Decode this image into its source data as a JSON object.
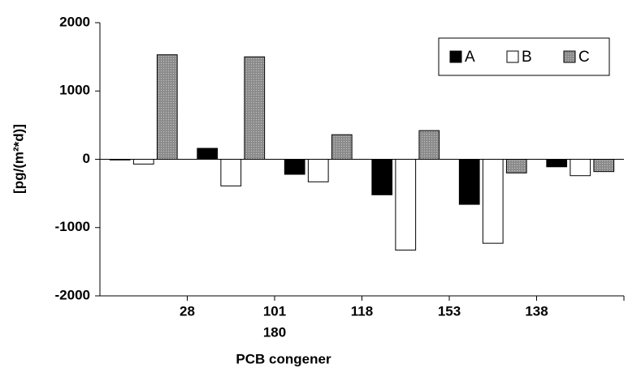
{
  "chart_data": {
    "type": "bar",
    "y_label": "[pg/(m²*d)]",
    "x_label": "PCB congener",
    "categories": [
      "28",
      "101",
      "118",
      "153",
      "138",
      "180"
    ],
    "series": [
      {
        "name": "A",
        "color": "#000000",
        "values": [
          -10,
          160,
          -220,
          -520,
          -660,
          -110
        ]
      },
      {
        "name": "B",
        "color": "#ffffff",
        "values": [
          -70,
          -390,
          -330,
          -1330,
          -1230,
          -240
        ]
      },
      {
        "name": "C",
        "color": "#999999",
        "values": [
          1530,
          1500,
          360,
          420,
          -200,
          -180
        ]
      }
    ],
    "ylim": [
      -2000,
      2000
    ],
    "yticks": [
      -2000,
      -1000,
      0,
      1000,
      2000
    ],
    "legend": "top-right"
  }
}
